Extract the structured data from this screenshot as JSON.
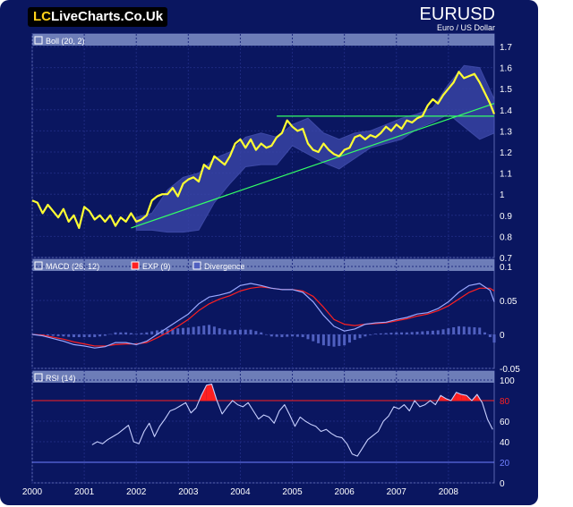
{
  "header": {
    "logo_prefix": "LC",
    "logo_text": "LiveCharts.Co.Uk",
    "symbol": "EURUSD",
    "subtitle": "Euro / US Dollar"
  },
  "colors": {
    "background": "#0a1660",
    "panel_header": "#7f8fc8",
    "price_line": "#ffff33",
    "band_fill": "#3a46a8",
    "trendline": "#33ff66",
    "macd_line": "#9aa8ff",
    "exp_line": "#ff2020",
    "divergence": "#5060c0",
    "rsi_line": "#c8d0ff",
    "rsi_overbought": "#ff2020",
    "rsi_oversold": "#7080ff"
  },
  "chart_data": [
    {
      "type": "line",
      "panel": "price",
      "legend": "Boll (20, 2)",
      "x_tick_labels": [
        "2000",
        "2001",
        "2002",
        "2003",
        "2004",
        "2005",
        "2006",
        "2007",
        "2008"
      ],
      "y_tick_labels": [
        "1.7",
        "1.6",
        "1.5",
        "1.4",
        "1.3",
        "1.2",
        "1.1",
        "1",
        "0.9",
        "0.8",
        "0.7"
      ],
      "ylim": [
        0.7,
        1.7
      ],
      "xlim": [
        2000.0,
        2008.88
      ],
      "series": [
        {
          "role": "price",
          "x": [
            2000.0,
            2000.1,
            2000.2,
            2000.3,
            2000.4,
            2000.5,
            2000.6,
            2000.7,
            2000.8,
            2000.9,
            2001.0,
            2001.1,
            2001.2,
            2001.3,
            2001.4,
            2001.5,
            2001.6,
            2001.7,
            2001.8,
            2001.9,
            2002.0,
            2002.1,
            2002.2,
            2002.3,
            2002.4,
            2002.5,
            2002.6,
            2002.7,
            2002.8,
            2002.9,
            2003.0,
            2003.1,
            2003.2,
            2003.3,
            2003.4,
            2003.5,
            2003.6,
            2003.7,
            2003.8,
            2003.9,
            2004.0,
            2004.1,
            2004.2,
            2004.3,
            2004.4,
            2004.5,
            2004.6,
            2004.7,
            2004.8,
            2004.9,
            2005.0,
            2005.1,
            2005.2,
            2005.3,
            2005.4,
            2005.5,
            2005.6,
            2005.7,
            2005.8,
            2005.9,
            2006.0,
            2006.1,
            2006.2,
            2006.3,
            2006.4,
            2006.5,
            2006.6,
            2006.7,
            2006.8,
            2006.9,
            2007.0,
            2007.1,
            2007.2,
            2007.3,
            2007.4,
            2007.5,
            2007.6,
            2007.7,
            2007.8,
            2007.9,
            2008.0,
            2008.1,
            2008.2,
            2008.3,
            2008.4,
            2008.5,
            2008.6,
            2008.7,
            2008.8,
            2008.88
          ],
          "values": [
            0.97,
            0.96,
            0.91,
            0.95,
            0.92,
            0.89,
            0.93,
            0.87,
            0.9,
            0.84,
            0.94,
            0.92,
            0.88,
            0.9,
            0.87,
            0.9,
            0.85,
            0.89,
            0.87,
            0.91,
            0.87,
            0.88,
            0.9,
            0.97,
            0.99,
            1.0,
            1.0,
            1.03,
            0.99,
            1.05,
            1.07,
            1.08,
            1.06,
            1.14,
            1.12,
            1.18,
            1.16,
            1.14,
            1.18,
            1.24,
            1.26,
            1.22,
            1.26,
            1.21,
            1.24,
            1.22,
            1.23,
            1.27,
            1.29,
            1.35,
            1.32,
            1.3,
            1.31,
            1.24,
            1.21,
            1.2,
            1.24,
            1.21,
            1.19,
            1.18,
            1.21,
            1.22,
            1.27,
            1.28,
            1.26,
            1.28,
            1.27,
            1.29,
            1.32,
            1.3,
            1.33,
            1.31,
            1.35,
            1.34,
            1.36,
            1.37,
            1.42,
            1.45,
            1.43,
            1.47,
            1.5,
            1.53,
            1.58,
            1.55,
            1.56,
            1.57,
            1.53,
            1.48,
            1.43,
            1.38
          ]
        },
        {
          "role": "upper_band",
          "x": [
            2002.0,
            2002.3,
            2002.6,
            2002.9,
            2003.2,
            2003.5,
            2003.8,
            2004.1,
            2004.4,
            2004.7,
            2005.0,
            2005.3,
            2005.6,
            2005.9,
            2006.2,
            2006.5,
            2006.8,
            2007.1,
            2007.4,
            2007.7,
            2008.0,
            2008.3,
            2008.6,
            2008.88
          ],
          "values": [
            0.89,
            0.91,
            1.02,
            1.08,
            1.1,
            1.17,
            1.2,
            1.27,
            1.29,
            1.27,
            1.33,
            1.36,
            1.29,
            1.26,
            1.29,
            1.3,
            1.33,
            1.36,
            1.38,
            1.41,
            1.52,
            1.61,
            1.6,
            1.45
          ]
        },
        {
          "role": "lower_band",
          "x": [
            2002.0,
            2002.3,
            2002.6,
            2002.9,
            2003.2,
            2003.5,
            2003.8,
            2004.1,
            2004.4,
            2004.7,
            2005.0,
            2005.3,
            2005.6,
            2005.9,
            2006.2,
            2006.5,
            2006.8,
            2007.1,
            2007.4,
            2007.7,
            2008.0,
            2008.3,
            2008.6,
            2008.88
          ],
          "values": [
            0.83,
            0.83,
            0.82,
            0.82,
            0.83,
            0.96,
            1.05,
            1.13,
            1.14,
            1.14,
            1.23,
            1.19,
            1.15,
            1.12,
            1.17,
            1.22,
            1.24,
            1.26,
            1.31,
            1.34,
            1.38,
            1.32,
            1.26,
            1.29
          ]
        },
        {
          "role": "trendline",
          "x": [
            2001.9,
            2008.88
          ],
          "values": [
            0.84,
            1.43
          ]
        },
        {
          "role": "horizontal_line",
          "x": [
            2004.7,
            2008.88
          ],
          "values": [
            1.37,
            1.37
          ]
        }
      ]
    },
    {
      "type": "line",
      "panel": "macd",
      "legend": [
        "MACD (26, 12)",
        "EXP (9)",
        "Divergence"
      ],
      "y_tick_labels": [
        "0.1",
        "0.05",
        "0",
        "-0.05"
      ],
      "ylim": [
        -0.05,
        0.1
      ],
      "xlim": [
        2000.0,
        2008.88
      ],
      "series": [
        {
          "name": "MACD (26, 12)",
          "x": [
            2000.0,
            2000.2,
            2000.4,
            2000.6,
            2000.8,
            2001.0,
            2001.2,
            2001.4,
            2001.6,
            2001.8,
            2002.0,
            2002.2,
            2002.4,
            2002.6,
            2002.8,
            2003.0,
            2003.2,
            2003.4,
            2003.6,
            2003.8,
            2004.0,
            2004.2,
            2004.4,
            2004.6,
            2004.8,
            2005.0,
            2005.2,
            2005.4,
            2005.6,
            2005.8,
            2006.0,
            2006.2,
            2006.4,
            2006.6,
            2006.8,
            2007.0,
            2007.2,
            2007.4,
            2007.6,
            2007.8,
            2008.0,
            2008.2,
            2008.4,
            2008.6,
            2008.8,
            2008.88
          ],
          "values": [
            0.0,
            -0.002,
            -0.006,
            -0.01,
            -0.015,
            -0.017,
            -0.02,
            -0.018,
            -0.012,
            -0.012,
            -0.015,
            -0.01,
            0.0,
            0.01,
            0.02,
            0.03,
            0.045,
            0.055,
            0.058,
            0.062,
            0.072,
            0.075,
            0.072,
            0.068,
            0.066,
            0.066,
            0.062,
            0.048,
            0.028,
            0.012,
            0.005,
            0.008,
            0.015,
            0.017,
            0.018,
            0.022,
            0.025,
            0.03,
            0.032,
            0.038,
            0.048,
            0.062,
            0.072,
            0.075,
            0.065,
            0.048
          ]
        },
        {
          "name": "EXP (9)",
          "x": [
            2000.0,
            2000.2,
            2000.4,
            2000.6,
            2000.8,
            2001.0,
            2001.2,
            2001.4,
            2001.6,
            2001.8,
            2002.0,
            2002.2,
            2002.4,
            2002.6,
            2002.8,
            2003.0,
            2003.2,
            2003.4,
            2003.6,
            2003.8,
            2004.0,
            2004.2,
            2004.4,
            2004.6,
            2004.8,
            2005.0,
            2005.2,
            2005.4,
            2005.6,
            2005.8,
            2006.0,
            2006.2,
            2006.4,
            2006.6,
            2006.8,
            2007.0,
            2007.2,
            2007.4,
            2007.6,
            2007.8,
            2008.0,
            2008.2,
            2008.4,
            2008.6,
            2008.8,
            2008.88
          ],
          "values": [
            0.0,
            -0.001,
            -0.004,
            -0.007,
            -0.011,
            -0.014,
            -0.017,
            -0.017,
            -0.015,
            -0.014,
            -0.014,
            -0.012,
            -0.005,
            0.003,
            0.012,
            0.022,
            0.035,
            0.045,
            0.052,
            0.057,
            0.064,
            0.068,
            0.07,
            0.068,
            0.066,
            0.066,
            0.064,
            0.056,
            0.04,
            0.022,
            0.015,
            0.013,
            0.015,
            0.016,
            0.017,
            0.02,
            0.023,
            0.027,
            0.03,
            0.035,
            0.042,
            0.052,
            0.062,
            0.068,
            0.068,
            0.064
          ]
        },
        {
          "name": "Divergence",
          "x": [
            2000.0,
            2000.2,
            2000.4,
            2000.6,
            2000.8,
            2001.0,
            2001.2,
            2001.4,
            2001.6,
            2001.8,
            2002.0,
            2002.2,
            2002.4,
            2002.6,
            2002.8,
            2003.0,
            2003.2,
            2003.4,
            2003.6,
            2003.8,
            2004.0,
            2004.2,
            2004.4,
            2004.6,
            2004.8,
            2005.0,
            2005.2,
            2005.4,
            2005.6,
            2005.8,
            2006.0,
            2006.2,
            2006.4,
            2006.6,
            2006.8,
            2007.0,
            2007.2,
            2007.4,
            2007.6,
            2007.8,
            2008.0,
            2008.2,
            2008.4,
            2008.6,
            2008.8,
            2008.88
          ],
          "values": [
            0.0,
            -0.001,
            -0.002,
            -0.003,
            -0.004,
            -0.004,
            -0.004,
            -0.002,
            0.003,
            0.003,
            0.001,
            0.003,
            0.006,
            0.008,
            0.009,
            0.01,
            0.012,
            0.014,
            0.009,
            0.006,
            0.007,
            0.007,
            0.003,
            -0.003,
            -0.004,
            -0.003,
            -0.004,
            -0.01,
            -0.016,
            -0.018,
            -0.016,
            -0.008,
            -0.003,
            0.001,
            0.002,
            0.003,
            0.003,
            0.004,
            0.005,
            0.006,
            0.009,
            0.012,
            0.011,
            0.01,
            -0.004,
            -0.012
          ]
        }
      ]
    },
    {
      "type": "line",
      "panel": "rsi",
      "legend": "RSI (14)",
      "y_tick_labels": [
        "100",
        "80",
        "60",
        "40",
        "20",
        "0"
      ],
      "ylim": [
        0,
        100
      ],
      "overbought": 80,
      "oversold": 20,
      "xlim": [
        2000.0,
        2008.88
      ],
      "series": [
        {
          "name": "RSI (14)",
          "x": [
            2001.15,
            2001.25,
            2001.35,
            2001.45,
            2001.55,
            2001.65,
            2001.75,
            2001.85,
            2001.95,
            2002.05,
            2002.15,
            2002.25,
            2002.35,
            2002.45,
            2002.55,
            2002.65,
            2002.75,
            2002.85,
            2002.95,
            2003.05,
            2003.15,
            2003.25,
            2003.35,
            2003.45,
            2003.55,
            2003.65,
            2003.75,
            2003.85,
            2003.95,
            2004.05,
            2004.15,
            2004.25,
            2004.35,
            2004.45,
            2004.55,
            2004.65,
            2004.75,
            2004.85,
            2004.95,
            2005.05,
            2005.15,
            2005.25,
            2005.35,
            2005.45,
            2005.55,
            2005.65,
            2005.75,
            2005.85,
            2005.95,
            2006.05,
            2006.15,
            2006.25,
            2006.35,
            2006.45,
            2006.55,
            2006.65,
            2006.75,
            2006.85,
            2006.95,
            2007.05,
            2007.15,
            2007.25,
            2007.35,
            2007.45,
            2007.55,
            2007.65,
            2007.75,
            2007.85,
            2007.95,
            2008.05,
            2008.15,
            2008.25,
            2008.35,
            2008.45,
            2008.55,
            2008.65,
            2008.75,
            2008.85
          ],
          "values": [
            37,
            40,
            38,
            42,
            45,
            48,
            52,
            56,
            40,
            38,
            50,
            58,
            45,
            55,
            62,
            70,
            72,
            75,
            78,
            68,
            73,
            85,
            95,
            96,
            80,
            67,
            74,
            80,
            76,
            74,
            78,
            70,
            62,
            66,
            64,
            58,
            70,
            76,
            66,
            55,
            64,
            60,
            57,
            55,
            50,
            52,
            48,
            45,
            44,
            38,
            28,
            26,
            34,
            42,
            46,
            50,
            60,
            65,
            74,
            72,
            76,
            70,
            80,
            74,
            76,
            80,
            76,
            85,
            82,
            80,
            88,
            86,
            85,
            80,
            86,
            78,
            62,
            52
          ]
        }
      ]
    }
  ]
}
